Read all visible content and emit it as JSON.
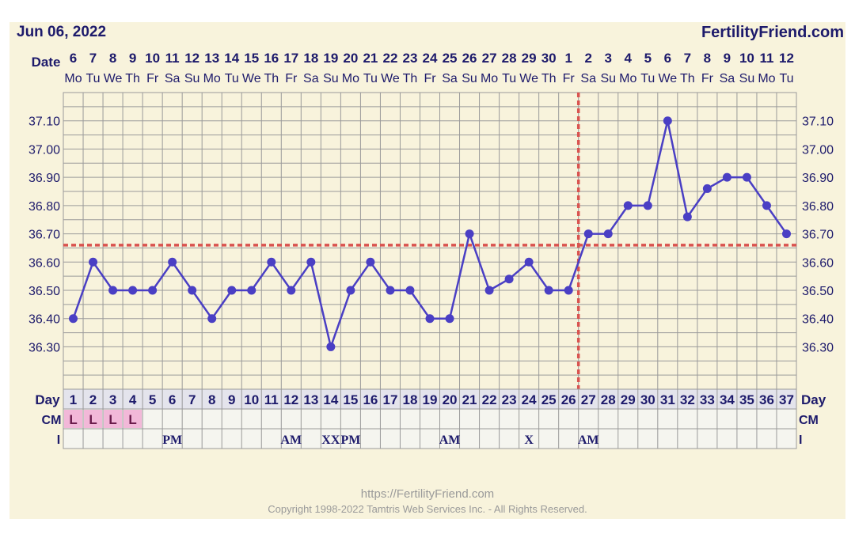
{
  "header": {
    "date_label": "Jun 06, 2022",
    "brand": "FertilityFriend.com"
  },
  "footer": {
    "url": "https://FertilityFriend.com",
    "copyright": "Copyright 1998-2022 Tamtris Web Services Inc. - All Rights Reserved."
  },
  "chart_data": {
    "type": "line",
    "title": "",
    "row_labels": {
      "date": "Date",
      "day": "Day",
      "cm": "CM",
      "i": "I"
    },
    "dates": [
      "6",
      "7",
      "8",
      "9",
      "10",
      "11",
      "12",
      "13",
      "14",
      "15",
      "16",
      "17",
      "18",
      "19",
      "20",
      "21",
      "22",
      "23",
      "24",
      "25",
      "26",
      "27",
      "28",
      "29",
      "30",
      "1",
      "2",
      "3",
      "4",
      "5",
      "6",
      "7",
      "8",
      "9",
      "10",
      "11",
      "12"
    ],
    "weekdays": [
      "Mo",
      "Tu",
      "We",
      "Th",
      "Fr",
      "Sa",
      "Su",
      "Mo",
      "Tu",
      "We",
      "Th",
      "Fr",
      "Sa",
      "Su",
      "Mo",
      "Tu",
      "We",
      "Th",
      "Fr",
      "Sa",
      "Su",
      "Mo",
      "Tu",
      "We",
      "Th",
      "Fr",
      "Sa",
      "Su",
      "Mo",
      "Tu",
      "We",
      "Th",
      "Fr",
      "Sa",
      "Su",
      "Mo",
      "Tu"
    ],
    "x": [
      1,
      2,
      3,
      4,
      5,
      6,
      7,
      8,
      9,
      10,
      11,
      12,
      13,
      14,
      15,
      16,
      17,
      18,
      19,
      20,
      21,
      22,
      23,
      24,
      25,
      26,
      27,
      28,
      29,
      30,
      31,
      32,
      33,
      34,
      35,
      36,
      37
    ],
    "series": [
      {
        "values": [
          36.4,
          36.6,
          36.5,
          36.5,
          36.5,
          36.6,
          36.5,
          36.4,
          36.5,
          36.5,
          36.6,
          36.5,
          36.6,
          36.3,
          36.5,
          36.6,
          36.5,
          36.5,
          36.4,
          36.4,
          36.7,
          36.5,
          36.54,
          36.6,
          36.5,
          36.5,
          36.7,
          36.7,
          36.8,
          36.8,
          37.1,
          36.76,
          36.86,
          36.9,
          36.9,
          36.8,
          36.7
        ]
      }
    ],
    "y_ticks": [
      "36.30",
      "36.40",
      "36.50",
      "36.60",
      "36.70",
      "36.80",
      "36.90",
      "37.00",
      "37.10"
    ],
    "ylim": [
      36.15,
      37.2
    ],
    "coverline": 36.66,
    "ovulation_day": 26,
    "cm": [
      "L",
      "L",
      "L",
      "L",
      "",
      "",
      "",
      "",
      "",
      "",
      "",
      "",
      "",
      "",
      "",
      "",
      "",
      "",
      "",
      "",
      "",
      "",
      "",
      "",
      "",
      "",
      "",
      "",
      "",
      "",
      "",
      "",
      "",
      "",
      "",
      "",
      ""
    ],
    "i": [
      "",
      "",
      "",
      "",
      "",
      "PM",
      "",
      "",
      "",
      "",
      "",
      "AM",
      "",
      "XX",
      "PM",
      "",
      "",
      "",
      "",
      "AM",
      "",
      "",
      "",
      "X",
      "",
      "",
      "AM",
      "",
      "",
      "",
      "",
      "",
      "",
      "",
      "",
      "",
      ""
    ],
    "grid": true,
    "colors": {
      "line": "#4a3fc4",
      "coverline": "#d9534f",
      "grid": "#9a9a9a",
      "text": "#1d1a6b",
      "background": "#f8f3dc",
      "cm_fill": "#f2b8d8",
      "day_row_fill": "#e4e4ec"
    }
  }
}
